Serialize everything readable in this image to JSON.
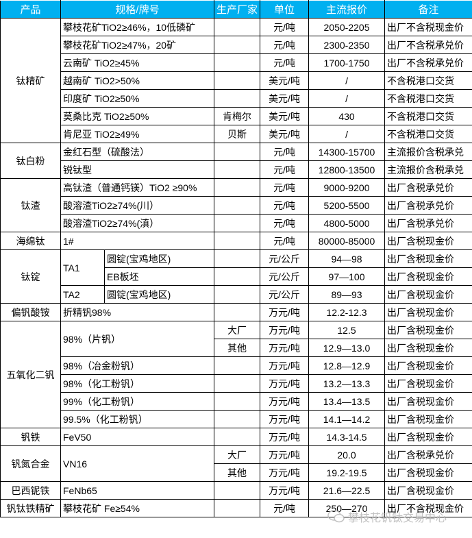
{
  "colors": {
    "header_bg": "#00B0F0",
    "header_text": "#ffffff",
    "border": "#000000"
  },
  "headers": [
    "产品",
    "规格/牌号",
    "生产厂家",
    "单位",
    "主流报价",
    "备注"
  ],
  "groups": [
    {
      "product": "钛精矿",
      "rows": [
        {
          "spec": "攀枝花矿TiO2≥46%，10低磷矿",
          "maker": "",
          "unit": "元/吨",
          "price": "2050-2205",
          "remark": "出厂不含税现金价"
        },
        {
          "spec": "攀枝花矿TiO2≥47%，20矿",
          "maker": "",
          "unit": "元/吨",
          "price": "2300-2350",
          "remark": "出厂不含税承兑价"
        },
        {
          "spec": "云南矿 TiO2≥45%",
          "maker": "",
          "unit": "元/吨",
          "price": "1700-1750",
          "remark": "出厂不含税承兑价"
        },
        {
          "spec": "越南矿 TiO2>50%",
          "maker": "",
          "unit": "美元/吨",
          "price": "/",
          "remark": "不含税港口交货"
        },
        {
          "spec": "印度矿 TiO2≥50%",
          "maker": "",
          "unit": "美元/吨",
          "price": "/",
          "remark": "不含税港口交货"
        },
        {
          "spec": "莫桑比克 TiO2≥50%",
          "maker": "肯梅尔",
          "unit": "美元/吨",
          "price": "430",
          "remark": "不含税港口交货"
        },
        {
          "spec": "肯尼亚 TiO2≥49%",
          "maker": "贝斯",
          "unit": "美元/吨",
          "price": "/",
          "remark": "不含税港口交货"
        }
      ]
    },
    {
      "product": "钛白粉",
      "rows": [
        {
          "spec": "金红石型（硫酸法）",
          "maker": "",
          "unit": "元/吨",
          "price": "14300-15700",
          "remark": "主流报价含税承兑"
        },
        {
          "spec": "锐钛型",
          "maker": "",
          "unit": "元/吨",
          "price": "12800-13500",
          "remark": "主流报价含税承兑"
        }
      ]
    },
    {
      "product": "钛渣",
      "rows": [
        {
          "spec": "高钛渣（普通钙镁）TiO2 ≥90%",
          "maker": "",
          "unit": "元/吨",
          "price": "9000-9200",
          "remark": "出厂含税承兑价"
        },
        {
          "spec": "酸溶渣TiO2≥74%(川）",
          "maker": "",
          "unit": "元/吨",
          "price": "5200-5500",
          "remark": "出厂含税承兑价"
        },
        {
          "spec": "酸溶渣TiO2≥74%(滇）",
          "maker": "",
          "unit": "元/吨",
          "price": "4800-5000",
          "remark": "出厂含税承兑价"
        }
      ]
    },
    {
      "product": "海绵钛",
      "rows": [
        {
          "spec": "1#",
          "maker": "",
          "unit": "元/吨",
          "price": "80000-85000",
          "remark": "出厂含税现金价"
        }
      ]
    },
    {
      "product": "钛锭",
      "rows": [
        {
          "spec": "TA1",
          "sub": "圆锭(宝鸡地区)",
          "maker": "",
          "unit": "元/公斤",
          "price": "94—98",
          "remark": "出厂含税现金价"
        },
        {
          "spec": null,
          "sub": "EB板坯",
          "maker": "",
          "unit": "元/公斤",
          "price": "97—100",
          "remark": "出厂含税现金价"
        },
        {
          "spec": "TA2",
          "sub": "圆锭(宝鸡地区)",
          "maker": "",
          "unit": "元/公斤",
          "price": "89—93",
          "remark": "出厂含税现金价"
        }
      ]
    },
    {
      "product": "偏钒酸铵",
      "rows": [
        {
          "spec": "折精钒98%",
          "maker": "",
          "unit": "万元/吨",
          "price": "12.2-12.3",
          "remark": "出厂含税现金价"
        }
      ]
    },
    {
      "product": "五氧化二钒",
      "rows": [
        {
          "spec": "98%（片钒）",
          "maker": "大厂",
          "unit": "万元/吨",
          "price": "12.5",
          "remark": "出厂含税现金价"
        },
        {
          "spec": null,
          "maker": "其他",
          "unit": "万元/吨",
          "price": "12.9—13.0",
          "remark": "出厂含税现金价"
        },
        {
          "spec": "98%（冶金粉钒）",
          "maker": "",
          "unit": "万元/吨",
          "price": "12.8—12.9",
          "remark": "出厂含税现金价"
        },
        {
          "spec": "98%（化工粉钒）",
          "maker": "",
          "unit": "万元/吨",
          "price": "13.2—13.3",
          "remark": "出厂含税现金价"
        },
        {
          "spec": "99%（化工粉钒）",
          "maker": "",
          "unit": "万元/吨",
          "price": "13.4—13.5",
          "remark": "出厂含税现金价"
        },
        {
          "spec": "99.5%（化工粉钒）",
          "maker": "",
          "unit": "万元/吨",
          "price": "14.1—14.2",
          "remark": "出厂含税现金价"
        }
      ]
    },
    {
      "product": "钒铁",
      "rows": [
        {
          "spec": "FeV50",
          "maker": "",
          "unit": "万元/吨",
          "price": "14.3-14.5",
          "remark": "出厂含税现金价"
        }
      ]
    },
    {
      "product": "钒氮合金",
      "rows": [
        {
          "spec": "VN16",
          "maker": "大厂",
          "unit": "万元/吨",
          "price": "20.0",
          "remark": "出厂含税承兑价"
        },
        {
          "spec": null,
          "maker": "其他",
          "unit": "万元/吨",
          "price": "19.2-19.5",
          "remark": "出厂含税现金价"
        }
      ]
    },
    {
      "product": "巴西铌铁",
      "rows": [
        {
          "spec": "FeNb65",
          "maker": "",
          "unit": "万元/吨",
          "price": "21.6—22.5",
          "remark": "出厂含税现金价"
        }
      ]
    },
    {
      "product": "钒钛铁精矿",
      "rows": [
        {
          "spec": "攀枝花矿 Fe≥54%",
          "maker": "",
          "unit": "元/吨",
          "price": "250—270",
          "remark": "出厂不含税现金价"
        }
      ]
    }
  ],
  "watermark": {
    "text": "攀枝花钒钛交易中心",
    "icon": "wechat-icon"
  }
}
